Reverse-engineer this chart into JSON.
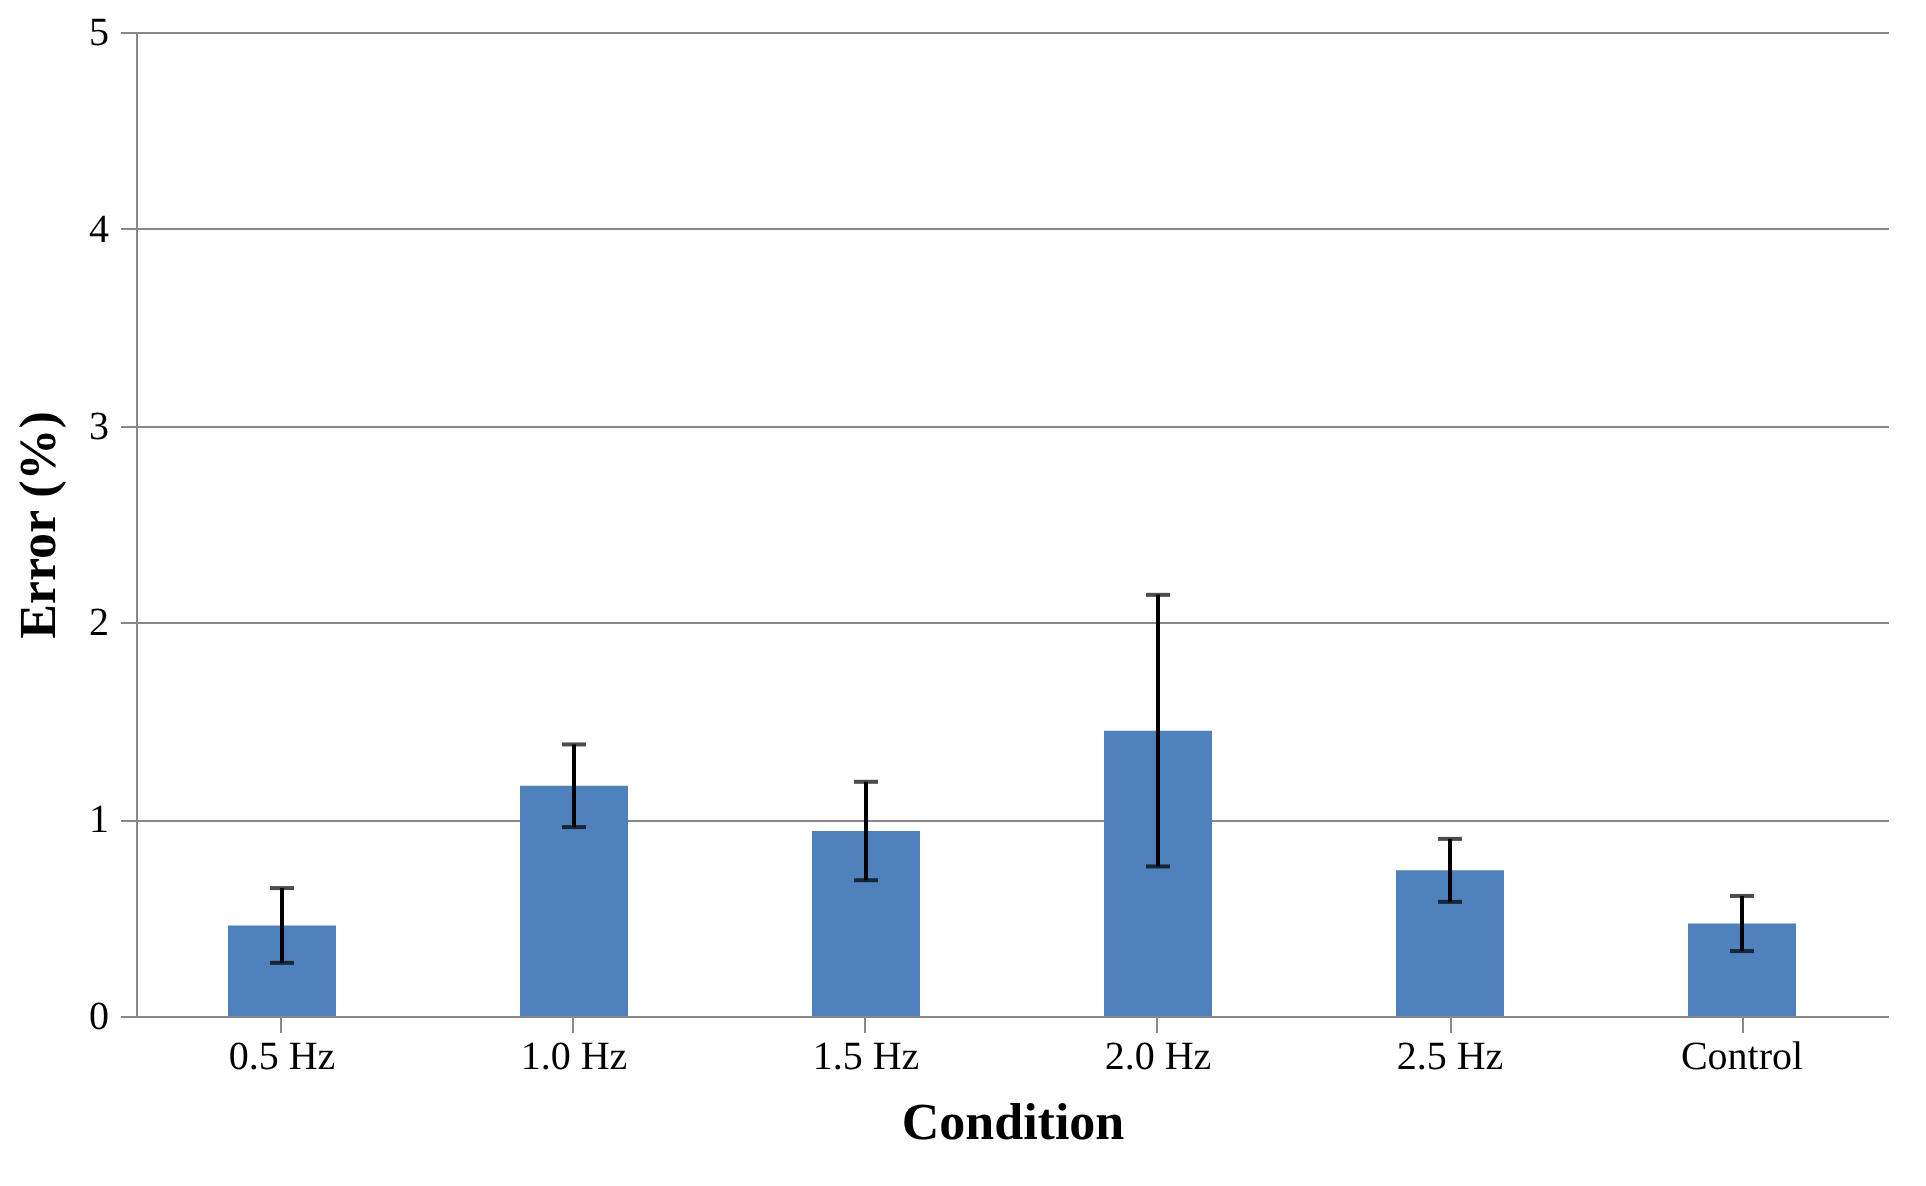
{
  "chart_data": {
    "type": "bar",
    "xlabel": "Condition",
    "ylabel": "Error (%)",
    "categories": [
      "0.5 Hz",
      "1.0 Hz",
      "1.5 Hz",
      "2.0 Hz",
      "2.5 Hz",
      "Control"
    ],
    "values": [
      0.46,
      1.17,
      0.94,
      1.45,
      0.74,
      0.47
    ],
    "errors": [
      0.19,
      0.21,
      0.25,
      0.69,
      0.16,
      0.14
    ],
    "color": "#4f81bd",
    "ylim": [
      0,
      5
    ],
    "yticks": [
      0,
      1,
      2,
      3,
      4,
      5
    ],
    "grid": "y"
  }
}
